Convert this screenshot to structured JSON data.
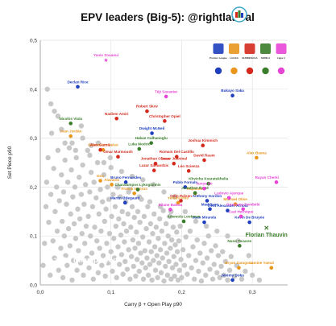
{
  "chart_data": {
    "type": "scatter",
    "title": "EPV leaders (Big-5): @rightlateral",
    "xlabel": "Carry β + Open Play p90",
    "ylabel": "Set Piece p90",
    "xlim": [
      0.0,
      0.35
    ],
    "ylim": [
      0.0,
      0.5
    ],
    "x_ticks": [
      "0,0",
      "0,1",
      "0,2",
      "0,3"
    ],
    "y_ticks": [
      "0,0",
      "0,1",
      "0,2",
      "0,3",
      "0,4",
      "0,5"
    ],
    "grid": true,
    "annotation": ">700 mins played",
    "league_legend": {
      "position": "top-right",
      "items": [
        {
          "name": "Premier League",
          "color": "#1f3fbf"
        },
        {
          "name": "LALIGA",
          "color": "#e8961c"
        },
        {
          "name": "BUNDESLIGA",
          "color": "#d42a1e"
        },
        {
          "name": "SERIE A",
          "color": "#3a7d2a"
        },
        {
          "name": "Ligue 1",
          "color": "#e845d6"
        }
      ]
    },
    "series": [
      {
        "name": "Premier League",
        "color": "#1f3fbf",
        "points": [
          {
            "label": "Declan Rice",
            "x": 0.053,
            "y": 0.405
          },
          {
            "label": "Bukayo Saka",
            "x": 0.272,
            "y": 0.387
          },
          {
            "label": "Dwight McNeil",
            "x": 0.158,
            "y": 0.31
          },
          {
            "label": "Bruno Fernandes",
            "x": 0.121,
            "y": 0.21
          },
          {
            "label": "Martin Ødegaard",
            "x": 0.12,
            "y": 0.168
          },
          {
            "label": "Pablo Fornals",
            "x": 0.205,
            "y": 0.2
          },
          {
            "label": "Anthony Gordon",
            "x": 0.236,
            "y": 0.172
          },
          {
            "label": "Maddison",
            "x": 0.24,
            "y": 0.155
          },
          {
            "label": "Trent Alexander-Arnold",
            "x": 0.265,
            "y": 0.152
          },
          {
            "label": "Kevin De Bruyne",
            "x": 0.296,
            "y": 0.128
          },
          {
            "label": "Juan Miranda",
            "x": 0.232,
            "y": 0.128
          },
          {
            "label": "Jérémy Doku",
            "x": 0.272,
            "y": 0.01
          }
        ]
      },
      {
        "name": "LALIGA",
        "color": "#e8961c",
        "points": [
          {
            "label": "Joan Jordán",
            "x": 0.043,
            "y": 0.304
          },
          {
            "label": "Gioavni Lo Celso",
            "x": 0.089,
            "y": 0.276
          },
          {
            "label": "Isco",
            "x": 0.085,
            "y": 0.213
          },
          {
            "label": "Alavarez",
            "x": 0.101,
            "y": 0.205
          },
          {
            "label": "Franck Honrus",
            "x": 0.133,
            "y": 0.187
          },
          {
            "label": "Alex Baena",
            "x": 0.306,
            "y": 0.26
          },
          {
            "label": "Yeremi Pino",
            "x": 0.195,
            "y": 0.168
          },
          {
            "label": "Raphinha",
            "x": 0.219,
            "y": 0.187
          },
          {
            "label": "Michael Olise",
            "x": 0.276,
            "y": 0.165
          },
          {
            "label": "Bryan Zaragoza",
            "x": 0.281,
            "y": 0.035
          },
          {
            "label": "Lamine Yamal",
            "x": 0.327,
            "y": 0.035
          }
        ]
      },
      {
        "name": "BUNDESLIGA",
        "color": "#d42a1e",
        "points": [
          {
            "label": "Nadiem Amiri",
            "x": 0.108,
            "y": 0.34
          },
          {
            "label": "Robert Skov",
            "x": 0.151,
            "y": 0.355
          },
          {
            "label": "Christopher Opiel",
            "x": 0.176,
            "y": 0.335
          },
          {
            "label": "Alex García",
            "x": 0.085,
            "y": 0.276
          },
          {
            "label": "Omar Marmoush",
            "x": 0.11,
            "y": 0.262
          },
          {
            "label": "Romain Del Castillo",
            "x": 0.193,
            "y": 0.262
          },
          {
            "label": "Joshua Kimmich",
            "x": 0.23,
            "y": 0.285
          },
          {
            "label": "David Raum",
            "x": 0.232,
            "y": 0.255
          },
          {
            "label": "Cesar Juaninal",
            "x": 0.189,
            "y": 0.248
          },
          {
            "label": "Jonathan Clauss",
            "x": 0.163,
            "y": 0.248
          },
          {
            "label": "Léo Scienza",
            "x": 0.21,
            "y": 0.233
          },
          {
            "label": "Lazar Samardzic",
            "x": 0.161,
            "y": 0.234
          },
          {
            "label": "Odin Polsen",
            "x": 0.199,
            "y": 0.172
          }
        ]
      },
      {
        "name": "SERIE A",
        "color": "#3a7d2a",
        "points": [
          {
            "label": "Nicolòs Viola",
            "x": 0.043,
            "y": 0.33
          },
          {
            "label": "Hakan Calhanoglu",
            "x": 0.157,
            "y": 0.29
          },
          {
            "label": "Luka Modric",
            "x": 0.14,
            "y": 0.278
          },
          {
            "label": "Khvicha Kvaratskhelia",
            "x": 0.238,
            "y": 0.207
          },
          {
            "label": "Charalampos Lykogiannis",
            "x": 0.138,
            "y": 0.195
          },
          {
            "label": "Jonathan Ikoné",
            "x": 0.219,
            "y": 0.188
          },
          {
            "label": "Ademola Lookman",
            "x": 0.203,
            "y": 0.13
          },
          {
            "label": "Nuno Tavares",
            "x": 0.282,
            "y": 0.08
          },
          {
            "label": "Florian Thauvin",
            "x": 0.32,
            "y": 0.115
          }
        ]
      },
      {
        "name": "Ligue 1",
        "color": "#e845d6",
        "points": [
          {
            "label": "Yanis Zouaoui",
            "x": 0.093,
            "y": 0.46
          },
          {
            "label": "Téji Savanier",
            "x": 0.178,
            "y": 0.385
          },
          {
            "label": "Junya Ito",
            "x": 0.232,
            "y": 0.197
          },
          {
            "label": "Dilane Bakwa",
            "x": 0.184,
            "y": 0.154
          },
          {
            "label": "Rayan Cherki",
            "x": 0.334,
            "y": 0.21
          },
          {
            "label": "Ousmane Dembélé",
            "x": 0.287,
            "y": 0.155
          },
          {
            "label": "Cazi Hernique",
            "x": 0.284,
            "y": 0.14
          },
          {
            "label": "Ludovic Ajorque",
            "x": 0.267,
            "y": 0.178
          }
        ]
      }
    ],
    "background_points": [
      [
        0.004,
        0.04
      ],
      [
        0.006,
        0.085
      ],
      [
        0.008,
        0.16
      ],
      [
        0.009,
        0.21
      ],
      [
        0.011,
        0.26
      ],
      [
        0.012,
        0.128
      ],
      [
        0.014,
        0.02
      ],
      [
        0.015,
        0.185
      ],
      [
        0.016,
        0.31
      ],
      [
        0.018,
        0.09
      ],
      [
        0.019,
        0.238
      ],
      [
        0.02,
        0.055
      ],
      [
        0.021,
        0.15
      ],
      [
        0.023,
        0.2
      ],
      [
        0.024,
        0.11
      ],
      [
        0.025,
        0.275
      ],
      [
        0.026,
        0.03
      ],
      [
        0.027,
        0.172
      ],
      [
        0.029,
        0.075
      ],
      [
        0.03,
        0.225
      ],
      [
        0.031,
        0.13
      ],
      [
        0.032,
        0.015
      ],
      [
        0.033,
        0.19
      ],
      [
        0.034,
        0.1
      ],
      [
        0.035,
        0.255
      ],
      [
        0.036,
        0.06
      ],
      [
        0.037,
        0.165
      ],
      [
        0.038,
        0.04
      ],
      [
        0.039,
        0.21
      ],
      [
        0.04,
        0.115
      ],
      [
        0.041,
        0.28
      ],
      [
        0.042,
        0.08
      ],
      [
        0.043,
        0.145
      ],
      [
        0.044,
        0.235
      ],
      [
        0.045,
        0.01
      ],
      [
        0.046,
        0.18
      ],
      [
        0.047,
        0.05
      ],
      [
        0.048,
        0.125
      ],
      [
        0.049,
        0.2
      ],
      [
        0.05,
        0.095
      ],
      [
        0.051,
        0.26
      ],
      [
        0.052,
        0.03
      ],
      [
        0.053,
        0.155
      ],
      [
        0.054,
        0.07
      ],
      [
        0.055,
        0.22
      ],
      [
        0.056,
        0.135
      ],
      [
        0.057,
        0.045
      ],
      [
        0.058,
        0.185
      ],
      [
        0.059,
        0.105
      ],
      [
        0.06,
        0.245
      ],
      [
        0.061,
        0.02
      ],
      [
        0.062,
        0.165
      ],
      [
        0.063,
        0.085
      ],
      [
        0.064,
        0.205
      ],
      [
        0.065,
        0.12
      ],
      [
        0.066,
        0.055
      ],
      [
        0.067,
        0.275
      ],
      [
        0.068,
        0.14
      ],
      [
        0.069,
        0.035
      ],
      [
        0.07,
        0.19
      ],
      [
        0.071,
        0.1
      ],
      [
        0.072,
        0.23
      ],
      [
        0.073,
        0.065
      ],
      [
        0.074,
        0.16
      ],
      [
        0.075,
        0.012
      ],
      [
        0.076,
        0.21
      ],
      [
        0.077,
        0.118
      ],
      [
        0.078,
        0.048
      ],
      [
        0.079,
        0.178
      ],
      [
        0.08,
        0.09
      ],
      [
        0.081,
        0.25
      ],
      [
        0.082,
        0.025
      ],
      [
        0.083,
        0.145
      ],
      [
        0.084,
        0.075
      ],
      [
        0.085,
        0.195
      ],
      [
        0.086,
        0.11
      ],
      [
        0.087,
        0.04
      ],
      [
        0.088,
        0.17
      ],
      [
        0.089,
        0.06
      ],
      [
        0.09,
        0.225
      ],
      [
        0.091,
        0.13
      ],
      [
        0.092,
        0.018
      ],
      [
        0.093,
        0.155
      ],
      [
        0.094,
        0.085
      ],
      [
        0.095,
        0.2
      ],
      [
        0.096,
        0.045
      ],
      [
        0.097,
        0.175
      ],
      [
        0.098,
        0.105
      ],
      [
        0.099,
        0.26
      ],
      [
        0.1,
        0.068
      ],
      [
        0.101,
        0.14
      ],
      [
        0.102,
        0.028
      ],
      [
        0.103,
        0.185
      ],
      [
        0.104,
        0.095
      ],
      [
        0.105,
        0.055
      ],
      [
        0.106,
        0.16
      ],
      [
        0.107,
        0.12
      ],
      [
        0.108,
        0.015
      ],
      [
        0.109,
        0.2
      ],
      [
        0.11,
        0.078
      ],
      [
        0.111,
        0.135
      ],
      [
        0.112,
        0.042
      ],
      [
        0.113,
        0.18
      ],
      [
        0.114,
        0.102
      ],
      [
        0.115,
        0.062
      ],
      [
        0.116,
        0.15
      ],
      [
        0.117,
        0.022
      ],
      [
        0.118,
        0.125
      ],
      [
        0.119,
        0.088
      ],
      [
        0.12,
        0.048
      ],
      [
        0.121,
        0.17
      ],
      [
        0.122,
        0.11
      ],
      [
        0.123,
        0.032
      ],
      [
        0.124,
        0.145
      ],
      [
        0.125,
        0.072
      ],
      [
        0.126,
        0.195
      ],
      [
        0.127,
        0.012
      ],
      [
        0.128,
        0.118
      ],
      [
        0.129,
        0.058
      ],
      [
        0.13,
        0.16
      ],
      [
        0.131,
        0.092
      ],
      [
        0.132,
        0.038
      ],
      [
        0.133,
        0.138
      ],
      [
        0.134,
        0.075
      ],
      [
        0.135,
        0.018
      ],
      [
        0.136,
        0.108
      ],
      [
        0.137,
        0.052
      ],
      [
        0.138,
        0.15
      ],
      [
        0.139,
        0.085
      ],
      [
        0.14,
        0.028
      ],
      [
        0.141,
        0.128
      ],
      [
        0.142,
        0.065
      ],
      [
        0.143,
        0.175
      ],
      [
        0.144,
        0.045
      ],
      [
        0.145,
        0.098
      ],
      [
        0.146,
        0.012
      ],
      [
        0.147,
        0.14
      ],
      [
        0.148,
        0.07
      ],
      [
        0.149,
        0.035
      ],
      [
        0.15,
        0.115
      ],
      [
        0.151,
        0.055
      ],
      [
        0.152,
        0.16
      ],
      [
        0.153,
        0.02
      ],
      [
        0.154,
        0.088
      ],
      [
        0.155,
        0.042
      ],
      [
        0.156,
        0.125
      ],
      [
        0.157,
        0.068
      ],
      [
        0.158,
        0.01
      ],
      [
        0.159,
        0.105
      ],
      [
        0.16,
        0.05
      ],
      [
        0.161,
        0.145
      ],
      [
        0.162,
        0.078
      ],
      [
        0.163,
        0.03
      ],
      [
        0.164,
        0.118
      ],
      [
        0.165,
        0.06
      ],
      [
        0.166,
        0.015
      ],
      [
        0.167,
        0.095
      ],
      [
        0.168,
        0.045
      ],
      [
        0.169,
        0.135
      ],
      [
        0.17,
        0.072
      ],
      [
        0.171,
        0.025
      ],
      [
        0.172,
        0.11
      ],
      [
        0.173,
        0.055
      ],
      [
        0.174,
        0.152
      ],
      [
        0.175,
        0.008
      ],
      [
        0.176,
        0.085
      ],
      [
        0.177,
        0.038
      ],
      [
        0.178,
        0.125
      ],
      [
        0.179,
        0.065
      ],
      [
        0.18,
        0.02
      ],
      [
        0.181,
        0.1
      ],
      [
        0.182,
        0.048
      ],
      [
        0.183,
        0.14
      ],
      [
        0.184,
        0.075
      ],
      [
        0.185,
        0.012
      ],
      [
        0.186,
        0.092
      ],
      [
        0.187,
        0.035
      ],
      [
        0.188,
        0.118
      ],
      [
        0.189,
        0.058
      ],
      [
        0.19,
        0.018
      ],
      [
        0.191,
        0.082
      ],
      [
        0.192,
        0.042
      ],
      [
        0.193,
        0.108
      ],
      [
        0.194,
        0.068
      ],
      [
        0.195,
        0.01
      ],
      [
        0.196,
        0.09
      ],
      [
        0.197,
        0.03
      ],
      [
        0.198,
        0.12
      ],
      [
        0.199,
        0.052
      ],
      [
        0.2,
        0.015
      ],
      [
        0.202,
        0.072
      ],
      [
        0.204,
        0.04
      ],
      [
        0.206,
        0.098
      ],
      [
        0.208,
        0.022
      ],
      [
        0.21,
        0.06
      ],
      [
        0.212,
        0.11
      ],
      [
        0.214,
        0.035
      ],
      [
        0.216,
        0.078
      ],
      [
        0.218,
        0.012
      ],
      [
        0.22,
        0.05
      ],
      [
        0.222,
        0.092
      ],
      [
        0.224,
        0.028
      ],
      [
        0.226,
        0.065
      ],
      [
        0.228,
        0.008
      ],
      [
        0.23,
        0.045
      ],
      [
        0.232,
        0.085
      ],
      [
        0.234,
        0.02
      ],
      [
        0.236,
        0.055
      ],
      [
        0.238,
        0.1
      ],
      [
        0.24,
        0.032
      ],
      [
        0.242,
        0.07
      ],
      [
        0.244,
        0.012
      ],
      [
        0.246,
        0.042
      ],
      [
        0.248,
        0.08
      ],
      [
        0.25,
        0.025
      ],
      [
        0.252,
        0.06
      ],
      [
        0.254,
        0.015
      ],
      [
        0.256,
        0.038
      ],
      [
        0.258,
        0.068
      ],
      [
        0.26,
        0.02
      ],
      [
        0.262,
        0.048
      ],
      [
        0.265,
        0.01
      ],
      [
        0.268,
        0.03
      ],
      [
        0.27,
        0.058
      ],
      [
        0.275,
        0.018
      ],
      [
        0.278,
        0.04
      ],
      [
        0.285,
        0.012
      ],
      [
        0.29,
        0.028
      ],
      [
        0.3,
        0.02
      ],
      [
        0.31,
        0.01
      ],
      [
        0.02,
        0.355
      ],
      [
        0.03,
        0.318
      ],
      [
        0.045,
        0.29
      ],
      [
        0.06,
        0.3
      ],
      [
        0.072,
        0.285
      ],
      [
        0.015,
        0.37
      ],
      [
        0.025,
        0.345
      ],
      [
        0.01,
        0.4
      ],
      [
        0.07,
        0.265
      ],
      [
        0.058,
        0.325
      ],
      [
        0.082,
        0.29
      ],
      [
        0.035,
        0.29
      ],
      [
        0.05,
        0.275
      ],
      [
        0.09,
        0.25
      ],
      [
        0.1,
        0.24
      ],
      [
        0.115,
        0.232
      ],
      [
        0.13,
        0.222
      ],
      [
        0.145,
        0.215
      ],
      [
        0.16,
        0.205
      ],
      [
        0.175,
        0.19
      ],
      [
        0.19,
        0.18
      ],
      [
        0.205,
        0.15
      ],
      [
        0.22,
        0.13
      ],
      [
        0.235,
        0.12
      ],
      [
        0.25,
        0.11
      ],
      [
        0.265,
        0.1
      ],
      [
        0.28,
        0.09
      ],
      [
        0.295,
        0.06
      ],
      [
        0.11,
        0.2
      ],
      [
        0.125,
        0.19
      ],
      [
        0.14,
        0.18
      ],
      [
        0.155,
        0.17
      ],
      [
        0.17,
        0.16
      ],
      [
        0.185,
        0.15
      ]
    ]
  }
}
